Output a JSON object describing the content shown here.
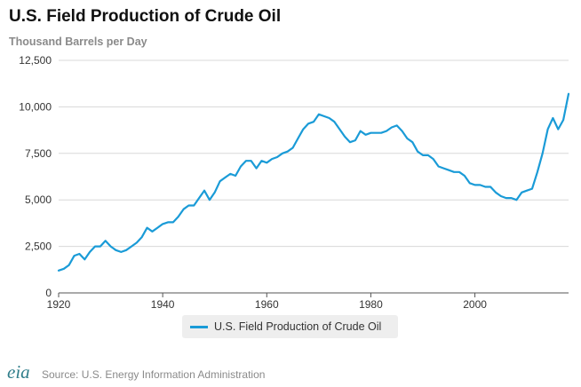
{
  "header": {
    "title": "U.S. Field Production of Crude Oil",
    "subtitle": "Thousand Barrels per Day"
  },
  "footer": {
    "logo_text": "eia",
    "source": "Source: U.S. Energy Information Administration"
  },
  "colors": {
    "series": "#1a9bd7",
    "grid": "#d8d8d8",
    "logo": "#2f7d8a"
  },
  "chart_data": {
    "type": "line",
    "title": "U.S. Field Production of Crude Oil",
    "subtitle": "Thousand Barrels per Day",
    "xlabel": "",
    "ylabel": "",
    "xlim": [
      1920,
      2018
    ],
    "ylim": [
      0,
      12500
    ],
    "x_ticks": [
      1920,
      1940,
      1960,
      1980,
      2000
    ],
    "x_tick_labels": [
      "1920",
      "1940",
      "1960",
      "1980",
      "2000"
    ],
    "y_ticks": [
      0,
      2500,
      5000,
      7500,
      10000,
      12500
    ],
    "y_tick_labels": [
      "0",
      "2,500",
      "5,000",
      "7,500",
      "10,000",
      "12,500"
    ],
    "grid": true,
    "legend_position": "bottom-center",
    "series": [
      {
        "name": "U.S. Field Production of Crude Oil",
        "x": [
          1920,
          1921,
          1922,
          1923,
          1924,
          1925,
          1926,
          1927,
          1928,
          1929,
          1930,
          1931,
          1932,
          1933,
          1934,
          1935,
          1936,
          1937,
          1938,
          1939,
          1940,
          1941,
          1942,
          1943,
          1944,
          1945,
          1946,
          1947,
          1948,
          1949,
          1950,
          1951,
          1952,
          1953,
          1954,
          1955,
          1956,
          1957,
          1958,
          1959,
          1960,
          1961,
          1962,
          1963,
          1964,
          1965,
          1966,
          1967,
          1968,
          1969,
          1970,
          1971,
          1972,
          1973,
          1974,
          1975,
          1976,
          1977,
          1978,
          1979,
          1980,
          1981,
          1982,
          1983,
          1984,
          1985,
          1986,
          1987,
          1988,
          1989,
          1990,
          1991,
          1992,
          1993,
          1994,
          1995,
          1996,
          1997,
          1998,
          1999,
          2000,
          2001,
          2002,
          2003,
          2004,
          2005,
          2006,
          2007,
          2008,
          2009,
          2010,
          2011,
          2012,
          2013,
          2014,
          2015,
          2016,
          2017,
          2018
        ],
        "values": [
          1200,
          1300,
          1500,
          2000,
          2100,
          1800,
          2200,
          2500,
          2500,
          2800,
          2500,
          2300,
          2200,
          2300,
          2500,
          2700,
          3000,
          3500,
          3300,
          3500,
          3700,
          3800,
          3800,
          4100,
          4500,
          4700,
          4700,
          5100,
          5500,
          5000,
          5400,
          6000,
          6200,
          6400,
          6300,
          6800,
          7100,
          7100,
          6700,
          7100,
          7000,
          7200,
          7300,
          7500,
          7600,
          7800,
          8300,
          8800,
          9100,
          9200,
          9600,
          9500,
          9400,
          9200,
          8800,
          8400,
          8100,
          8200,
          8700,
          8500,
          8600,
          8600,
          8600,
          8700,
          8900,
          9000,
          8700,
          8300,
          8100,
          7600,
          7400,
          7400,
          7200,
          6800,
          6700,
          6600,
          6500,
          6500,
          6300,
          5900,
          5800,
          5800,
          5700,
          5700,
          5400,
          5200,
          5100,
          5100,
          5000,
          5400,
          5500,
          5600,
          6500,
          7500,
          8800,
          9400,
          8800,
          9300,
          10700
        ]
      }
    ]
  }
}
